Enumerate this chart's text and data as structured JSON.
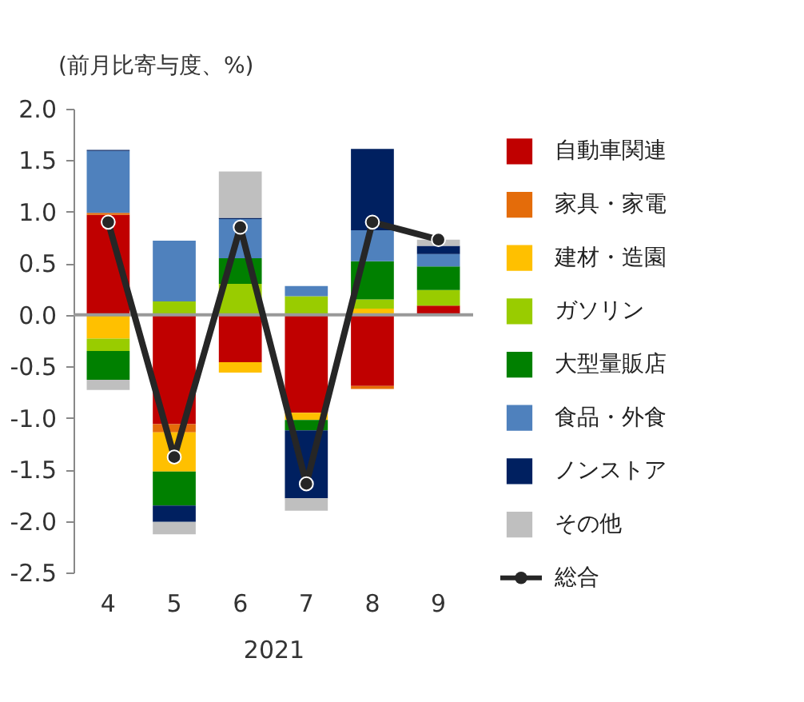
{
  "chart_data": {
    "type": "bar",
    "stacked": true,
    "ylabel": "(前月比寄与度、%)",
    "xlabel": "2021",
    "categories": [
      "4",
      "5",
      "6",
      "7",
      "8",
      "9"
    ],
    "ylim": [
      -2.5,
      2.0
    ],
    "yticks": [
      {
        "value": 2.0,
        "label": "2.0"
      },
      {
        "value": 1.5,
        "label": "1.5"
      },
      {
        "value": 1.0,
        "label": "1.0"
      },
      {
        "value": 0.5,
        "label": "0.5"
      },
      {
        "value": 0.0,
        "label": "0.0"
      },
      {
        "value": -0.5,
        "label": "-0.5"
      },
      {
        "value": -1.0,
        "label": "-1.0"
      },
      {
        "value": -1.5,
        "label": "-1.5"
      },
      {
        "value": -2.0,
        "label": "-2.0"
      },
      {
        "value": -2.5,
        "label": "-2.5"
      }
    ],
    "grid": false,
    "legend": "right",
    "ref_lines": [
      {
        "axis": "y",
        "value": 0,
        "color": "#999999"
      }
    ],
    "series": [
      {
        "name": "自動車関連",
        "color": "#c00000",
        "values": [
          0.97,
          -1.06,
          -0.46,
          -0.95,
          -0.69,
          0.09
        ]
      },
      {
        "name": "家具・家電",
        "color": "#e46c0a",
        "values": [
          0.02,
          -0.08,
          null,
          null,
          -0.03,
          null
        ]
      },
      {
        "name": "建材・造園",
        "color": "#ffc000",
        "values": [
          -0.23,
          -0.38,
          -0.1,
          -0.07,
          0.06,
          null
        ]
      },
      {
        "name": "ガソリン",
        "color": "#99cc00",
        "values": [
          -0.12,
          0.13,
          0.3,
          0.18,
          0.09,
          0.15
        ]
      },
      {
        "name": "大型量販店",
        "color": "#008000",
        "values": [
          -0.28,
          -0.33,
          0.25,
          -0.1,
          0.37,
          0.23
        ]
      },
      {
        "name": "食品・外食",
        "color": "#4f81bd",
        "values": [
          0.6,
          0.59,
          0.38,
          0.1,
          0.3,
          0.12
        ]
      },
      {
        "name": "ノンストア",
        "color": "#002060",
        "values": [
          0.01,
          -0.16,
          0.01,
          -0.66,
          0.79,
          0.08
        ]
      },
      {
        "name": "その他",
        "color": "#bfbfbf",
        "values": [
          -0.1,
          -0.12,
          0.45,
          -0.12,
          null,
          0.06
        ]
      },
      {
        "name": "総合",
        "color": "#262626",
        "type": "line",
        "marker": "circle",
        "values": [
          0.9,
          -1.38,
          0.85,
          -1.64,
          0.9,
          0.73
        ]
      }
    ]
  }
}
